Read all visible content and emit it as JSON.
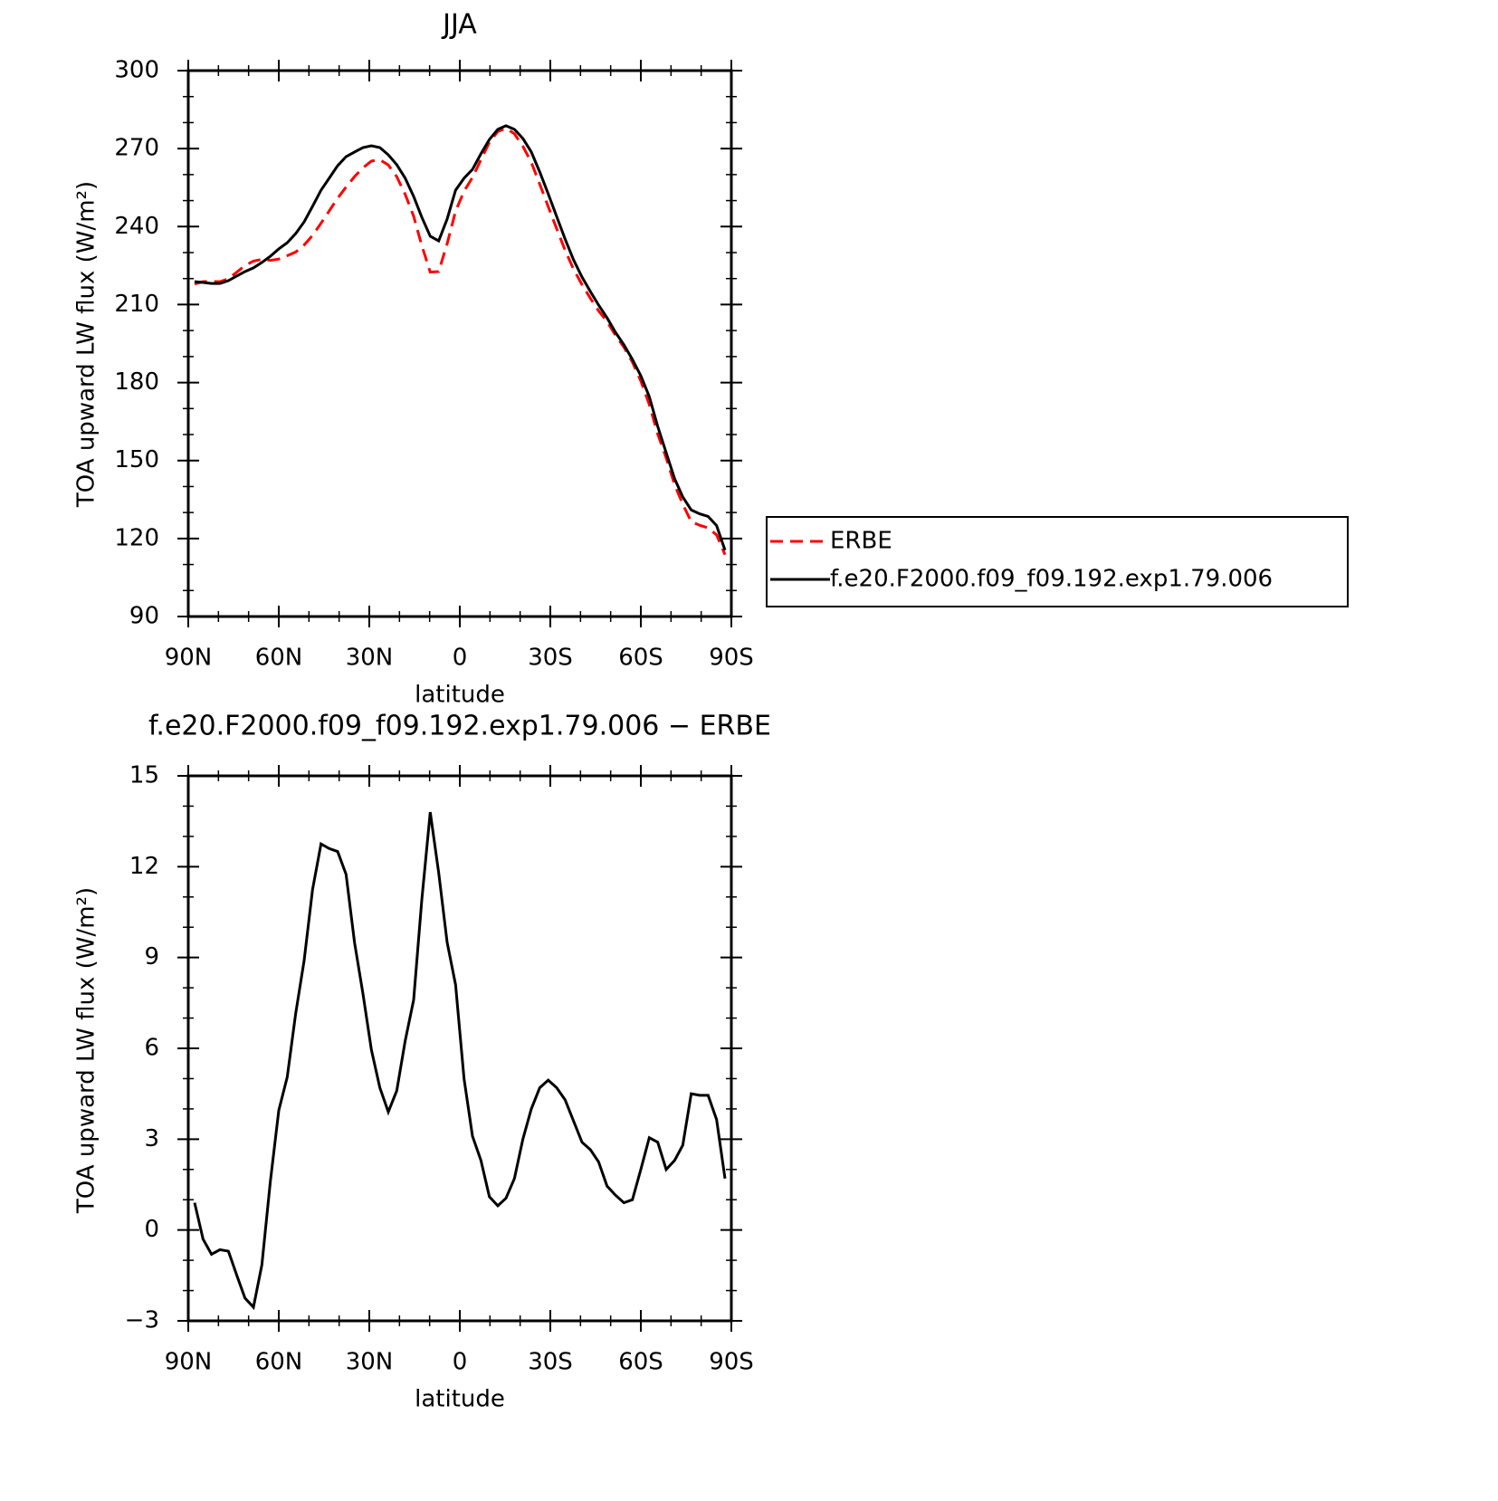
{
  "chart_data": [
    {
      "type": "line",
      "title": "JJA",
      "ylabel": "TOA upward LW flux (W/m²)",
      "xlabel": "latitude",
      "xlim": [
        90,
        -90
      ],
      "xticks": [
        {
          "value": 90,
          "label": "90N"
        },
        {
          "value": 60,
          "label": "60N"
        },
        {
          "value": 30,
          "label": "30N"
        },
        0,
        {
          "value": -30,
          "label": "30S"
        },
        {
          "value": -60,
          "label": "60S"
        },
        {
          "value": -90,
          "label": "90S"
        }
      ],
      "xminorticks": [
        80,
        70,
        50,
        40,
        20,
        10,
        -10,
        -20,
        -40,
        -50,
        -70,
        -80
      ],
      "ylim": [
        90,
        300
      ],
      "yticks": [
        90,
        120,
        150,
        180,
        210,
        240,
        270,
        300
      ],
      "yminorticks": [
        100,
        110,
        130,
        140,
        160,
        170,
        190,
        200,
        220,
        230,
        250,
        260,
        280,
        290
      ],
      "legend": "outside-right",
      "x": [
        87.9,
        85.1,
        82.3,
        79.5,
        76.7,
        73.9,
        71.2,
        68.4,
        65.6,
        62.8,
        60.0,
        57.2,
        54.4,
        51.6,
        48.8,
        46.0,
        43.3,
        40.5,
        37.7,
        34.9,
        32.1,
        29.3,
        26.5,
        23.7,
        20.9,
        18.1,
        15.3,
        12.6,
        9.8,
        7.0,
        4.2,
        1.4,
        -1.4,
        -4.2,
        -7.0,
        -9.8,
        -12.6,
        -15.3,
        -18.1,
        -20.9,
        -23.7,
        -26.5,
        -29.3,
        -32.1,
        -34.9,
        -37.7,
        -40.5,
        -43.3,
        -46.0,
        -48.8,
        -51.6,
        -54.4,
        -57.2,
        -60.0,
        -62.8,
        -65.6,
        -68.4,
        -71.2,
        -73.9,
        -76.7,
        -79.5,
        -82.3,
        -85.1,
        -87.9
      ],
      "series": [
        {
          "name": "ERBE",
          "color": "#ff0000",
          "style": "dashed",
          "values": [
            217.9,
            218.8,
            218.9,
            218.8,
            219.9,
            222.5,
            225.0,
            226.7,
            227.4,
            227.0,
            227.5,
            228.8,
            230.2,
            232.9,
            236.6,
            241.3,
            246.0,
            250.9,
            255.2,
            259.2,
            262.6,
            265.2,
            265.7,
            263.7,
            259.2,
            252.4,
            244.0,
            232.7,
            222.5,
            222.7,
            233.4,
            245.9,
            253.6,
            258.9,
            265.7,
            272.4,
            276.6,
            277.8,
            275.7,
            270.9,
            264.7,
            256.3,
            247.7,
            239.2,
            230.9,
            223.6,
            217.7,
            212.4,
            207.6,
            203.5,
            198.2,
            193.6,
            187.9,
            180.6,
            171.6,
            160.2,
            151.0,
            140.7,
            133.2,
            126.5,
            125.1,
            124.1,
            121.4,
            113.8
          ]
        },
        {
          "name": "f.e20.F2000.f09_f09.192.exp1.79.006",
          "color": "#000000",
          "style": "solid",
          "values": [
            218.8,
            218.5,
            218.1,
            218.1,
            219.2,
            221,
            222.7,
            224.1,
            226.2,
            228.6,
            231.4,
            233.8,
            237.3,
            241.8,
            247.8,
            254,
            258.6,
            263.4,
            266.9,
            268.7,
            270.4,
            271.1,
            270.4,
            267.6,
            263.8,
            258.6,
            251.6,
            243.6,
            236.3,
            234.5,
            242.9,
            254,
            258.6,
            262,
            268,
            273.5,
            277.4,
            278.8,
            277.4,
            273.9,
            268.7,
            261,
            252.6,
            243.9,
            235.2,
            227.2,
            220.6,
            215,
            209.8,
            204.9,
            199.3,
            194.5,
            188.9,
            182.6,
            174.6,
            163.1,
            153,
            143,
            136,
            131,
            129.5,
            128.5,
            125,
            115.5
          ]
        }
      ]
    },
    {
      "type": "line",
      "title": "f.e20.F2000.f09_f09.192.exp1.79.006 − ERBE",
      "ylabel": "TOA upward LW flux (W/m²)",
      "xlabel": "latitude",
      "xlim": [
        90,
        -90
      ],
      "xticks": [
        {
          "value": 90,
          "label": "90N"
        },
        {
          "value": 60,
          "label": "60N"
        },
        {
          "value": 30,
          "label": "30N"
        },
        0,
        {
          "value": -30,
          "label": "30S"
        },
        {
          "value": -60,
          "label": "60S"
        },
        {
          "value": -90,
          "label": "90S"
        }
      ],
      "xminorticks": [
        80,
        70,
        50,
        40,
        20,
        10,
        -10,
        -20,
        -40,
        -50,
        -70,
        -80
      ],
      "ylim": [
        -3,
        15
      ],
      "yticks": [
        {
          "value": -3,
          "label": "−3"
        },
        0,
        3,
        6,
        9,
        12,
        15
      ],
      "yminorticks": [
        -2,
        -1,
        1,
        2,
        4,
        5,
        7,
        8,
        10,
        11,
        13,
        14
      ],
      "x": [
        87.9,
        85.1,
        82.3,
        79.5,
        76.7,
        73.9,
        71.2,
        68.4,
        65.6,
        62.8,
        60.0,
        57.2,
        54.4,
        51.6,
        48.8,
        46.0,
        43.3,
        40.5,
        37.7,
        34.9,
        32.1,
        29.3,
        26.5,
        23.7,
        20.9,
        18.1,
        15.3,
        12.6,
        9.8,
        7.0,
        4.2,
        1.4,
        -1.4,
        -4.2,
        -7.0,
        -9.8,
        -12.6,
        -15.3,
        -18.1,
        -20.9,
        -23.7,
        -26.5,
        -29.3,
        -32.1,
        -34.9,
        -37.7,
        -40.5,
        -43.3,
        -46.0,
        -48.8,
        -51.6,
        -54.4,
        -57.2,
        -60.0,
        -62.8,
        -65.6,
        -68.4,
        -71.2,
        -73.9,
        -76.7,
        -79.5,
        -82.3,
        -85.1,
        -87.9
      ],
      "series": [
        {
          "color": "#000000",
          "style": "solid",
          "values": [
            0.9,
            -0.3,
            -0.8,
            -0.65,
            -0.7,
            -1.5,
            -2.25,
            -2.55,
            -1.15,
            1.6,
            3.95,
            5.05,
            7.15,
            8.9,
            11.25,
            12.75,
            12.6,
            12.5,
            11.75,
            9.5,
            7.8,
            5.95,
            4.7,
            3.9,
            4.6,
            6.25,
            7.6,
            10.9,
            13.8,
            11.8,
            9.5,
            8.1,
            5.0,
            3.1,
            2.3,
            1.1,
            0.8,
            1.05,
            1.7,
            3.0,
            4.0,
            4.7,
            4.95,
            4.7,
            4.3,
            3.6,
            2.9,
            2.65,
            2.25,
            1.45,
            1.15,
            0.9,
            1.0,
            2.0,
            3.05,
            2.9,
            2.0,
            2.3,
            2.8,
            4.5,
            4.45,
            4.45,
            3.65,
            1.7
          ]
        }
      ]
    }
  ]
}
